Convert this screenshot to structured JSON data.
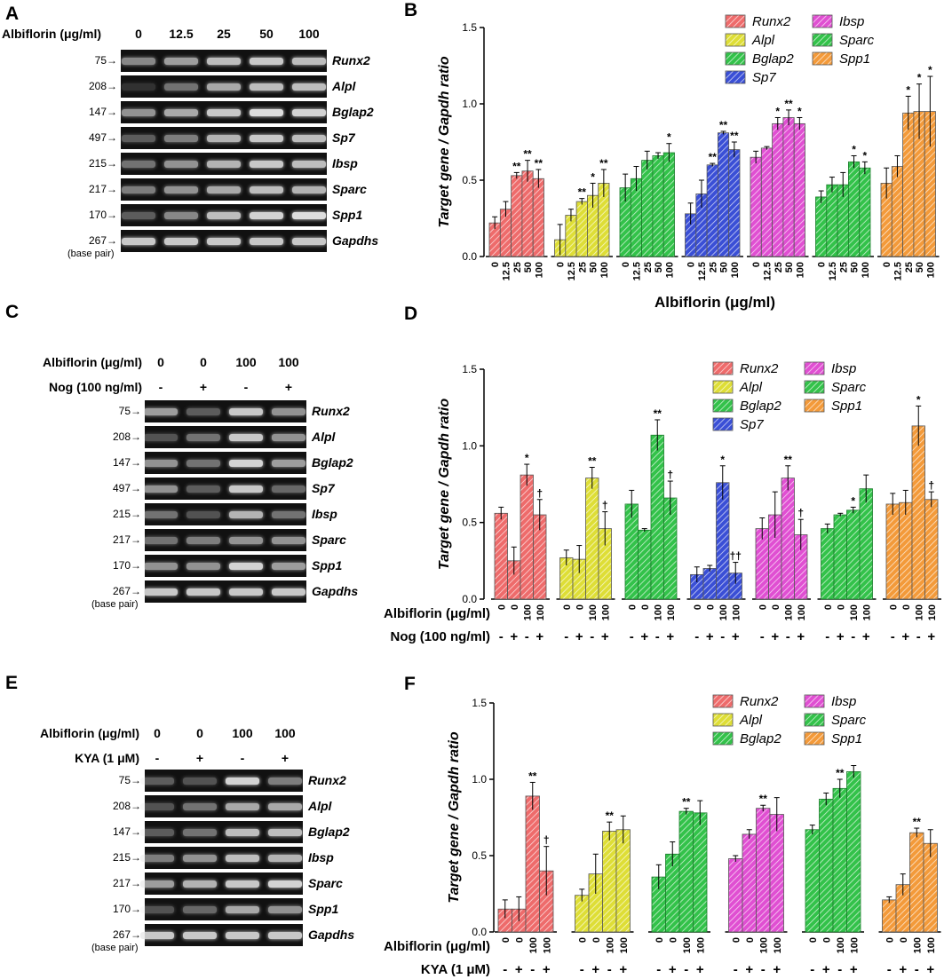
{
  "panels": {
    "A": {
      "letter": "A",
      "treat_label": "Albiflorin (μg/ml)",
      "lanes": [
        "0",
        "12.5",
        "25",
        "50",
        "100"
      ],
      "bp": [
        "75",
        "208",
        "147",
        "497",
        "215",
        "217",
        "170",
        "267"
      ],
      "genes": [
        "Runx2",
        "Alpl",
        "Bglap2",
        "Sp7",
        "Ibsp",
        "Sparc",
        "Spp1",
        "Gapdhs"
      ],
      "base_label": "(base pair)",
      "band_intensity": [
        [
          0.55,
          0.65,
          0.8,
          0.85,
          0.8
        ],
        [
          0.15,
          0.45,
          0.7,
          0.8,
          0.8
        ],
        [
          0.6,
          0.7,
          0.85,
          0.95,
          0.9
        ],
        [
          0.35,
          0.5,
          0.75,
          0.85,
          0.8
        ],
        [
          0.45,
          0.6,
          0.75,
          0.85,
          0.8
        ],
        [
          0.5,
          0.6,
          0.7,
          0.8,
          0.75
        ],
        [
          0.35,
          0.55,
          0.8,
          0.9,
          0.95
        ],
        [
          0.85,
          0.85,
          0.85,
          0.85,
          0.85
        ]
      ]
    },
    "C": {
      "letter": "C",
      "treat_label": "Albiflorin (μg/ml)",
      "treat_vals": [
        "0",
        "0",
        "100",
        "100"
      ],
      "cond_label": "Nog (100 ng/ml)",
      "cond_vals": [
        "-",
        "+",
        "-",
        "+"
      ],
      "bp": [
        "75",
        "208",
        "147",
        "497",
        "215",
        "217",
        "170",
        "267"
      ],
      "genes": [
        "Runx2",
        "Alpl",
        "Bglap2",
        "Sp7",
        "Ibsp",
        "Sparc",
        "Spp1",
        "Gapdhs"
      ],
      "base_label": "(base pair)",
      "band_intensity": [
        [
          0.65,
          0.35,
          0.85,
          0.6
        ],
        [
          0.3,
          0.45,
          0.85,
          0.6
        ],
        [
          0.6,
          0.45,
          0.9,
          0.65
        ],
        [
          0.6,
          0.35,
          0.85,
          0.4
        ],
        [
          0.45,
          0.3,
          0.75,
          0.45
        ],
        [
          0.45,
          0.5,
          0.6,
          0.6
        ],
        [
          0.6,
          0.6,
          0.9,
          0.65
        ],
        [
          0.85,
          0.85,
          0.85,
          0.85
        ]
      ]
    },
    "E": {
      "letter": "E",
      "treat_label": "Albiflorin (μg/ml)",
      "treat_vals": [
        "0",
        "0",
        "100",
        "100"
      ],
      "cond_label": "KYA (1 μM)",
      "cond_vals": [
        "-",
        "+",
        "-",
        "+"
      ],
      "bp": [
        "75",
        "208",
        "147",
        "215",
        "217",
        "170",
        "267"
      ],
      "genes": [
        "Runx2",
        "Alpl",
        "Bglap2",
        "Ibsp",
        "Sparc",
        "Spp1",
        "Gapdhs"
      ],
      "base_label": "(base pair)",
      "band_intensity": [
        [
          0.35,
          0.3,
          0.9,
          0.5
        ],
        [
          0.3,
          0.45,
          0.7,
          0.7
        ],
        [
          0.35,
          0.45,
          0.8,
          0.8
        ],
        [
          0.5,
          0.6,
          0.8,
          0.75
        ],
        [
          0.65,
          0.75,
          0.85,
          0.9
        ],
        [
          0.3,
          0.4,
          0.7,
          0.6
        ],
        [
          0.85,
          0.85,
          0.85,
          0.85
        ]
      ]
    }
  },
  "chart_data": [
    {
      "panel": "B",
      "type": "bar",
      "ylabel": "Target gene / Gapdh ratio",
      "xlabel": "Albiflorin (μg/ml)",
      "ylim": [
        0,
        1.5
      ],
      "yticks": [
        "0.0",
        "0.5",
        "1.0",
        "1.5"
      ],
      "categories": [
        "0",
        "12.5",
        "25",
        "50",
        "100"
      ],
      "legend": [
        "Runx2",
        "Alpl",
        "Bglap2",
        "Sp7",
        "Ibsp",
        "Sparc",
        "Spp1"
      ],
      "series": [
        {
          "name": "Runx2",
          "color": "#ee6b6b",
          "values": [
            0.22,
            0.31,
            0.53,
            0.56,
            0.51
          ],
          "errors": [
            0.04,
            0.05,
            0.02,
            0.07,
            0.06
          ],
          "marks": [
            "",
            "",
            "**",
            "**",
            "**"
          ]
        },
        {
          "name": "Alpl",
          "color": "#dede36",
          "values": [
            0.11,
            0.27,
            0.36,
            0.4,
            0.48
          ],
          "errors": [
            0.1,
            0.04,
            0.02,
            0.08,
            0.09
          ],
          "marks": [
            "",
            "",
            "**",
            "*",
            "**"
          ]
        },
        {
          "name": "Bglap2",
          "color": "#33c24a",
          "values": [
            0.45,
            0.51,
            0.63,
            0.66,
            0.68
          ],
          "errors": [
            0.09,
            0.08,
            0.06,
            0.02,
            0.06
          ],
          "marks": [
            "",
            "",
            "",
            "",
            "*"
          ]
        },
        {
          "name": "Sp7",
          "color": "#3a4fd6",
          "values": [
            0.28,
            0.41,
            0.6,
            0.81,
            0.7
          ],
          "errors": [
            0.07,
            0.09,
            0.01,
            0.01,
            0.05
          ],
          "marks": [
            "",
            "",
            "**",
            "**",
            "**"
          ]
        },
        {
          "name": "Ibsp",
          "color": "#e04fd2",
          "values": [
            0.65,
            0.71,
            0.87,
            0.91,
            0.87
          ],
          "errors": [
            0.04,
            0.01,
            0.04,
            0.05,
            0.04
          ],
          "marks": [
            "",
            "",
            "*",
            "**",
            "*"
          ]
        },
        {
          "name": "Sparc",
          "color": "#33c24a",
          "values": [
            0.39,
            0.47,
            0.47,
            0.62,
            0.58
          ],
          "errors": [
            0.04,
            0.05,
            0.08,
            0.04,
            0.04
          ],
          "marks": [
            "",
            "",
            "",
            "*",
            "*"
          ]
        },
        {
          "name": "Spp1",
          "color": "#f39a3a",
          "values": [
            0.48,
            0.59,
            0.94,
            0.95,
            0.95
          ],
          "errors": [
            0.1,
            0.07,
            0.11,
            0.18,
            0.23
          ],
          "marks": [
            "",
            "",
            "*",
            "*",
            "*"
          ]
        }
      ]
    },
    {
      "panel": "D",
      "type": "bar",
      "ylabel": "Target gene / Gapdh ratio",
      "ylim": [
        0,
        1.5
      ],
      "yticks": [
        "0.0",
        "0.5",
        "1.0",
        "1.5"
      ],
      "categories": [
        "0",
        "0",
        "100",
        "100"
      ],
      "row1_label": "Albiflorin (μg/ml)",
      "row2_label": "Nog (100 ng/ml)",
      "row2_vals": [
        "-",
        "+",
        "-",
        "+"
      ],
      "legend": [
        "Runx2",
        "Alpl",
        "Bglap2",
        "Sp7",
        "Ibsp",
        "Sparc",
        "Spp1"
      ],
      "series": [
        {
          "name": "Runx2",
          "color": "#ee6b6b",
          "values": [
            0.56,
            0.25,
            0.81,
            0.55
          ],
          "errors": [
            0.04,
            0.09,
            0.07,
            0.1
          ],
          "marks": [
            "",
            "",
            "*",
            "†"
          ]
        },
        {
          "name": "Alpl",
          "color": "#dede36",
          "values": [
            0.27,
            0.26,
            0.79,
            0.46
          ],
          "errors": [
            0.05,
            0.09,
            0.07,
            0.11
          ],
          "marks": [
            "",
            "",
            "**",
            "†"
          ]
        },
        {
          "name": "Bglap2",
          "color": "#33c24a",
          "values": [
            0.62,
            0.45,
            1.07,
            0.66
          ],
          "errors": [
            0.09,
            0.01,
            0.1,
            0.11
          ],
          "marks": [
            "",
            "",
            "**",
            "†"
          ]
        },
        {
          "name": "Sp7",
          "color": "#3a4fd6",
          "values": [
            0.16,
            0.2,
            0.76,
            0.17
          ],
          "errors": [
            0.05,
            0.02,
            0.11,
            0.07
          ],
          "marks": [
            "",
            "",
            "*",
            "††"
          ]
        },
        {
          "name": "Ibsp",
          "color": "#e04fd2",
          "values": [
            0.46,
            0.55,
            0.79,
            0.42
          ],
          "errors": [
            0.07,
            0.15,
            0.08,
            0.1
          ],
          "marks": [
            "",
            "",
            "**",
            "†"
          ]
        },
        {
          "name": "Sparc",
          "color": "#33c24a",
          "values": [
            0.46,
            0.55,
            0.58,
            0.72
          ],
          "errors": [
            0.03,
            0.01,
            0.02,
            0.09
          ],
          "marks": [
            "",
            "",
            "*",
            ""
          ]
        },
        {
          "name": "Spp1",
          "color": "#f39a3a",
          "values": [
            0.62,
            0.63,
            1.13,
            0.65
          ],
          "errors": [
            0.07,
            0.08,
            0.13,
            0.05
          ],
          "marks": [
            "",
            "",
            "*",
            "†"
          ]
        }
      ]
    },
    {
      "panel": "F",
      "type": "bar",
      "ylabel": "Target gene / Gapdh ratio",
      "ylim": [
        0,
        1.5
      ],
      "yticks": [
        "0.0",
        "0.5",
        "1.0",
        "1.5"
      ],
      "categories": [
        "0",
        "0",
        "100",
        "100"
      ],
      "row1_label": "Albiflorin (μg/ml)",
      "row2_label": "KYA (1 μM)",
      "row2_vals": [
        "-",
        "+",
        "-",
        "+"
      ],
      "legend": [
        "Runx2",
        "Alpl",
        "Bglap2",
        "Ibsp",
        "Sparc",
        "Spp1"
      ],
      "series": [
        {
          "name": "Runx2",
          "color": "#ee6b6b",
          "values": [
            0.15,
            0.15,
            0.89,
            0.4
          ],
          "errors": [
            0.06,
            0.08,
            0.09,
            0.16
          ],
          "marks": [
            "",
            "",
            "**",
            "†"
          ]
        },
        {
          "name": "Alpl",
          "color": "#dede36",
          "values": [
            0.24,
            0.38,
            0.66,
            0.67
          ],
          "errors": [
            0.04,
            0.13,
            0.06,
            0.09
          ],
          "marks": [
            "",
            "",
            "**",
            ""
          ]
        },
        {
          "name": "Bglap2",
          "color": "#33c24a",
          "values": [
            0.36,
            0.51,
            0.79,
            0.78
          ],
          "errors": [
            0.08,
            0.08,
            0.02,
            0.08
          ],
          "marks": [
            "",
            "",
            "**",
            ""
          ]
        },
        {
          "name": "Ibsp",
          "color": "#e04fd2",
          "values": [
            0.48,
            0.64,
            0.81,
            0.77
          ],
          "errors": [
            0.02,
            0.03,
            0.02,
            0.11
          ],
          "marks": [
            "",
            "",
            "**",
            ""
          ]
        },
        {
          "name": "Sparc",
          "color": "#33c24a",
          "values": [
            0.67,
            0.87,
            0.94,
            1.05
          ],
          "errors": [
            0.03,
            0.04,
            0.06,
            0.04
          ],
          "marks": [
            "",
            "",
            "**",
            ""
          ]
        },
        {
          "name": "Spp1",
          "color": "#f39a3a",
          "values": [
            0.21,
            0.31,
            0.65,
            0.58
          ],
          "errors": [
            0.02,
            0.07,
            0.03,
            0.09
          ],
          "marks": [
            "",
            "",
            "**",
            ""
          ]
        }
      ]
    }
  ]
}
